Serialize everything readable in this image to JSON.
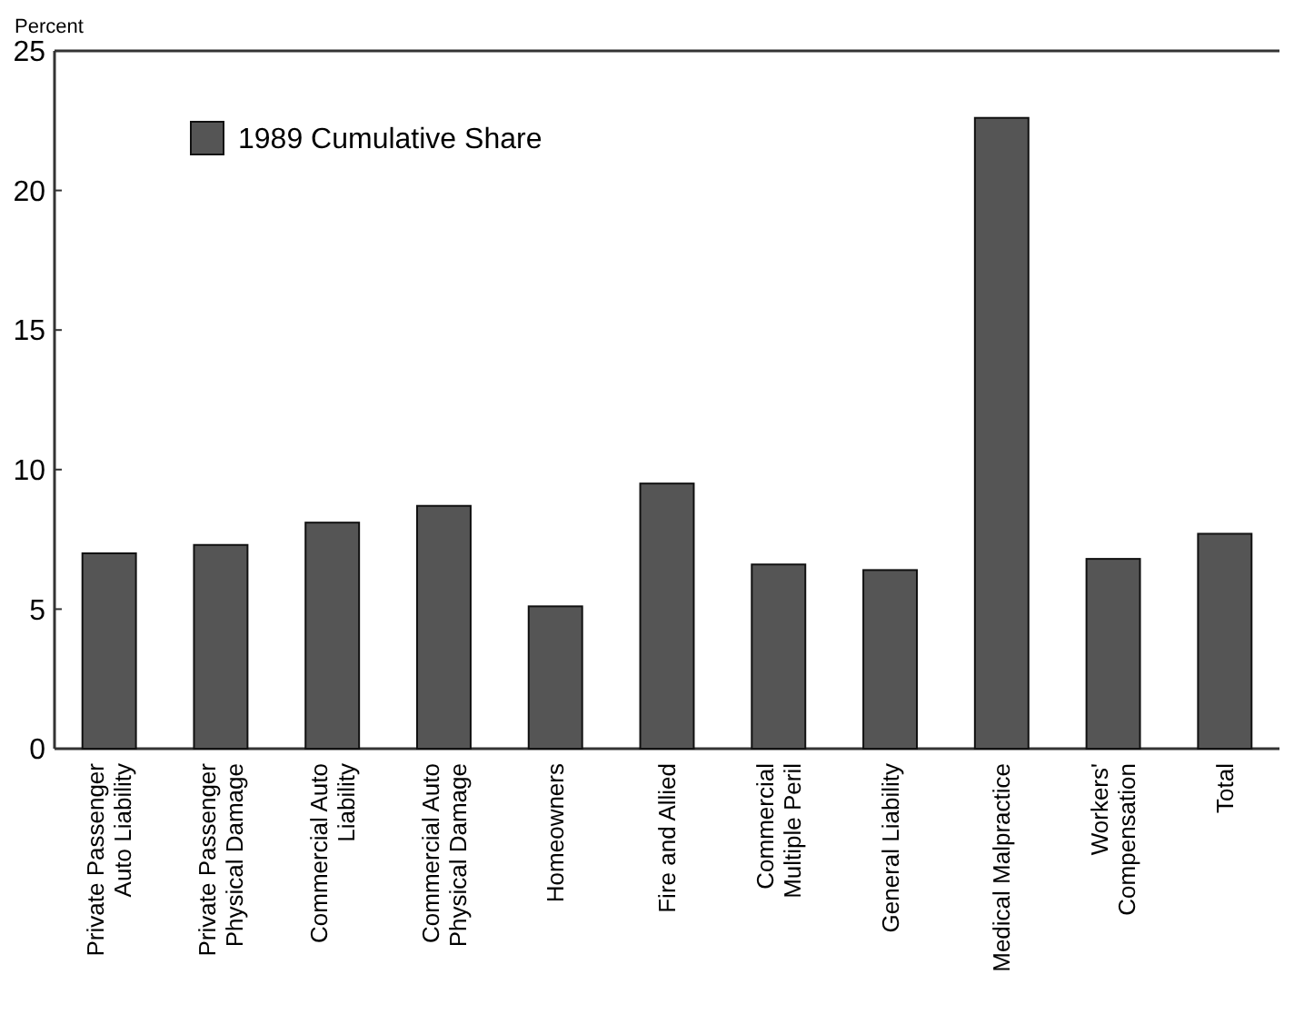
{
  "chart_data": {
    "type": "bar",
    "ylabel": "Percent",
    "categories": [
      "Private Passenger\nAuto Liability",
      "Private Passenger\nPhysical Damage",
      "Commercial Auto\nLiability",
      "Commercial Auto\nPhysical Damage",
      "Homeowners",
      "Fire and Allied",
      "Commercial\nMultiple Peril",
      "General Liability",
      "Medical Malpractice",
      "Workers'\nCompensation",
      "Total"
    ],
    "series": [
      {
        "name": "1989 Cumulative Share",
        "color": "#555555",
        "values": [
          7.0,
          7.3,
          8.1,
          8.7,
          5.1,
          9.5,
          6.6,
          6.4,
          22.6,
          6.8,
          7.7
        ]
      }
    ],
    "ylim": [
      0,
      25
    ],
    "yticks": [
      0,
      5,
      10,
      15,
      20,
      25
    ],
    "grid": false,
    "legend": "top left"
  }
}
